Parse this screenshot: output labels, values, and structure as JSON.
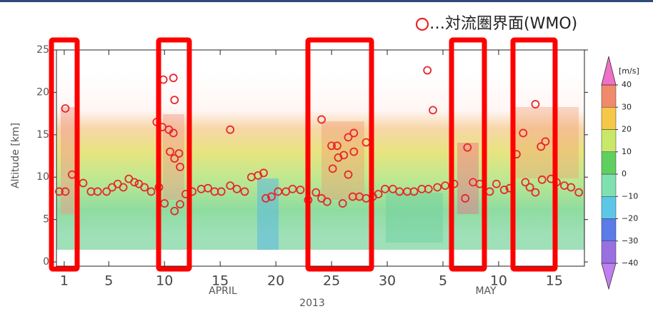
{
  "chart_data": {
    "type": "scatter",
    "y_label": "Altitude [km]",
    "x_labels": [
      "APRIL",
      "MAY"
    ],
    "x_title": "2013",
    "xlim": [
      0.3,
      47.7
    ],
    "xticks": [
      1,
      5,
      10,
      15,
      20,
      25,
      30,
      {
        "value": 35,
        "label": "5"
      },
      {
        "value": 40,
        "label": "10"
      },
      {
        "value": 45,
        "label": "15"
      }
    ],
    "ylim": [
      -0.5,
      25
    ],
    "yticks": [
      0,
      5,
      10,
      15,
      20,
      25
    ],
    "series": [
      {
        "name": "…対流圏界面(WMO)",
        "color": "#e8262a",
        "x": [
          0.55,
          1.1,
          1.1,
          1.7,
          2.7,
          3.4,
          4.0,
          4.8,
          5.3,
          5.8,
          6.3,
          6.8,
          7.3,
          7.7,
          8.2,
          8.8,
          9.3,
          9.5,
          9.8,
          9.9,
          10.4,
          10.5,
          10.8,
          10.9,
          10.8,
          11.3,
          11.4,
          10.9,
          10.0,
          10.9,
          11.4,
          11.9,
          12.5,
          13.3,
          13.9,
          14.5,
          15.1,
          15.9,
          15.9,
          16.5,
          17.2,
          17.8,
          18.4,
          18.9,
          19.1,
          19.6,
          20.2,
          20.9,
          21.5,
          22.2,
          22.9,
          23.6,
          24.1,
          24.1,
          24.6,
          25.0,
          25.1,
          25.5,
          25.6,
          26.0,
          26.1,
          26.5,
          26.5,
          27.0,
          27.0,
          26.9,
          27.5,
          28.1,
          28.1,
          28.7,
          29.2,
          29.8,
          30.5,
          31.1,
          31.8,
          32.4,
          33.1,
          33.6,
          34.1,
          33.7,
          34.5,
          35.2,
          36.0,
          37.0,
          37.2,
          37.7,
          38.3,
          39.2,
          39.8,
          40.5,
          41.0,
          41.6,
          42.2,
          42.4,
          42.8,
          43.3,
          43.3,
          43.8,
          44.2,
          43.9,
          44.7,
          45.2,
          45.9,
          46.5,
          47.2
        ],
        "values": [
          8.3,
          8.3,
          18.1,
          10.3,
          9.3,
          8.3,
          8.3,
          8.3,
          8.8,
          9.2,
          8.8,
          9.8,
          9.4,
          9.2,
          8.8,
          8.3,
          16.5,
          8.8,
          15.9,
          21.5,
          15.6,
          13.0,
          21.7,
          19.1,
          15.2,
          12.8,
          11.2,
          12.2,
          6.9,
          6.0,
          6.8,
          8.0,
          8.3,
          8.6,
          8.7,
          8.3,
          8.3,
          15.6,
          9.0,
          8.6,
          8.3,
          10.0,
          10.2,
          10.5,
          7.5,
          7.7,
          8.3,
          8.3,
          8.6,
          8.5,
          7.3,
          8.2,
          16.8,
          7.5,
          7.1,
          13.7,
          11.0,
          13.7,
          12.3,
          6.9,
          12.6,
          10.3,
          14.7,
          15.2,
          13.0,
          7.7,
          7.7,
          14.1,
          7.5,
          7.7,
          8.0,
          8.6,
          8.6,
          8.3,
          8.3,
          8.3,
          8.6,
          22.6,
          17.9,
          8.6,
          8.8,
          9.0,
          9.2,
          7.5,
          13.5,
          9.4,
          9.2,
          8.3,
          9.2,
          8.5,
          8.7,
          12.7,
          15.2,
          9.4,
          8.8,
          18.6,
          8.2,
          13.6,
          14.2,
          9.7,
          9.8,
          9.4,
          9.0,
          8.8,
          8.2
        ]
      }
    ],
    "colorbar": {
      "label": "[m/s]",
      "lim": [
        -40,
        40
      ],
      "ticks": [
        {
          "value": -40,
          "label": "−40"
        },
        {
          "value": -30,
          "label": "−30"
        },
        {
          "value": -20,
          "label": "−20"
        },
        {
          "value": -10,
          "label": "−10"
        },
        0,
        10,
        20,
        30,
        40
      ],
      "colors": [
        "#9a6fe0",
        "#5a7be8",
        "#5ec7e8",
        "#7fe0b0",
        "#5fcf5f",
        "#c9e86a",
        "#f5c84a",
        "#f08a6a"
      ],
      "under_color": "#c07ff0",
      "over_color": "#f070c8"
    }
  }
}
